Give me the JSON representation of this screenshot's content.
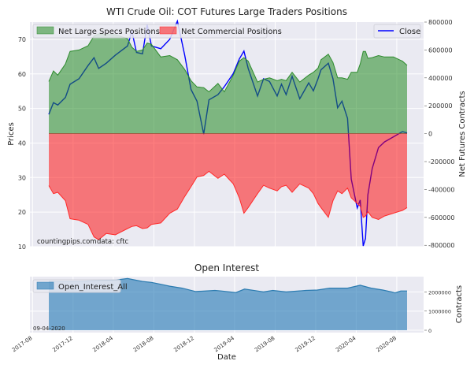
{
  "chart_data": [
    {
      "type": "area",
      "title": "WTI Crude Oil: COT Futures Large Traders Positions",
      "xlabel": "",
      "ylabel_left": "Prices",
      "ylabel_right": "Net Futures Contracts",
      "ylim_left": [
        10,
        75
      ],
      "ylim_right": [
        -810000,
        800000
      ],
      "yticks_left": [
        10,
        20,
        30,
        40,
        50,
        60,
        70
      ],
      "yticks_right": [
        -800000,
        -600000,
        -400000,
        -200000,
        0,
        200000,
        400000,
        600000,
        800000
      ],
      "grid": true,
      "legend_left": {
        "placement": "upper-left",
        "entries": [
          "Net Large Specs Positions",
          "Net Commercial Positions"
        ]
      },
      "legend_right": {
        "placement": "upper-right",
        "entries": [
          "Close"
        ]
      },
      "annotation": {
        "source": "countingpips.com",
        "data": "data: cftc"
      },
      "colors": {
        "specs": "#228B22",
        "commercial": "#ff0000",
        "close": "#0000ff",
        "specs_edge": "#2e8b2e",
        "commercial_edge": "#ff2a2a"
      },
      "x": [
        "2017-09-19",
        "2017-10-03",
        "2017-10-16",
        "2017-11-08",
        "2017-11-22",
        "2017-12-19",
        "2018-01-15",
        "2018-02-02",
        "2018-02-16",
        "2018-03-11",
        "2018-04-07",
        "2018-05-14",
        "2018-05-27",
        "2018-06-10",
        "2018-06-28",
        "2018-07-12",
        "2018-07-25",
        "2018-08-22",
        "2018-09-18",
        "2018-10-11",
        "2018-11-02",
        "2018-11-21",
        "2018-12-09",
        "2018-12-29",
        "2019-01-14",
        "2019-02-10",
        "2019-03-01",
        "2019-03-28",
        "2019-04-15",
        "2019-04-29",
        "2019-05-12",
        "2019-06-09",
        "2019-06-27",
        "2019-07-15",
        "2019-08-07",
        "2019-08-20",
        "2019-09-03",
        "2019-09-21",
        "2019-10-14",
        "2019-11-10",
        "2019-11-24",
        "2019-12-08",
        "2019-12-17",
        "2020-01-08",
        "2020-01-22",
        "2020-02-05",
        "2020-02-18",
        "2020-03-06",
        "2020-03-17",
        "2020-04-04",
        "2020-04-13",
        "2020-04-22",
        "2020-04-29",
        "2020-05-06",
        "2020-05-19",
        "2020-06-07",
        "2020-06-25",
        "2020-07-22",
        "2020-08-18",
        "2020-09-01"
      ],
      "series": [
        {
          "name": "Net Large Specs Positions",
          "axis": "right",
          "values": [
            374000,
            450000,
            420000,
            500000,
            590000,
            600000,
            630000,
            700000,
            715000,
            712000,
            710000,
            680000,
            620000,
            590000,
            600000,
            650000,
            640000,
            550000,
            560000,
            530000,
            460000,
            380000,
            335000,
            330000,
            300000,
            360000,
            300000,
            420000,
            520000,
            545000,
            520000,
            370000,
            390000,
            400000,
            380000,
            390000,
            380000,
            440000,
            370000,
            420000,
            440000,
            470000,
            530000,
            570000,
            510000,
            400000,
            400000,
            390000,
            440000,
            440000,
            500000,
            590000,
            590000,
            540000,
            545000,
            560000,
            550000,
            550000,
            520000,
            490000
          ]
        },
        {
          "name": "Net Commercial Positions",
          "axis": "right",
          "values": [
            -372000,
            -430000,
            -420000,
            -480000,
            -610000,
            -620000,
            -650000,
            -740000,
            -760000,
            -715000,
            -725000,
            -680000,
            -665000,
            -660000,
            -680000,
            -675000,
            -650000,
            -640000,
            -570000,
            -540000,
            -450000,
            -380000,
            -310000,
            -300000,
            -270000,
            -320000,
            -290000,
            -360000,
            -460000,
            -570000,
            -530000,
            -430000,
            -370000,
            -390000,
            -410000,
            -380000,
            -370000,
            -420000,
            -360000,
            -390000,
            -430000,
            -500000,
            -530000,
            -600000,
            -480000,
            -410000,
            -430000,
            -390000,
            -460000,
            -500000,
            -520000,
            -600000,
            -590000,
            -560000,
            -600000,
            -615000,
            -590000,
            -570000,
            -550000,
            -530000
          ]
        },
        {
          "name": "Close",
          "axis": "left",
          "values": [
            48.3,
            51.7,
            51.0,
            53.2,
            57.0,
            58.6,
            62.4,
            64.7,
            61.6,
            63.1,
            65.4,
            68.1,
            72.3,
            66.2,
            65.8,
            74.2,
            68.1,
            67.3,
            70.0,
            75.3,
            65.4,
            55.5,
            52.1,
            42.6,
            52.5,
            54.0,
            56.3,
            60.1,
            64.3,
            66.6,
            61.6,
            53.6,
            58.6,
            57.8,
            53.6,
            57.0,
            54.0,
            59.3,
            52.8,
            57.4,
            55.1,
            58.6,
            61.2,
            63.1,
            58.6,
            50.2,
            52.1,
            47.1,
            29.6,
            21.2,
            23.5,
            10.2,
            12.4,
            25.0,
            32.6,
            38.7,
            40.3,
            41.8,
            43.3,
            42.9
          ]
        }
      ]
    },
    {
      "type": "area",
      "title": "Open Interest",
      "xlabel": "Date",
      "ylabel_right": "Contracts",
      "ylim": [
        0,
        2800000
      ],
      "yticks": [
        0,
        1000000,
        2000000
      ],
      "xticks": [
        "2017-08",
        "2017-12",
        "2018-04",
        "2018-08",
        "2018-12",
        "2019-04",
        "2019-08",
        "2019-12",
        "2020-04",
        "2020-08"
      ],
      "grid": true,
      "legend": {
        "placement": "upper-left",
        "entries": [
          "Open_Interest_All"
        ]
      },
      "annotation": "09-04-2020",
      "colors": {
        "fill": "#1f77b4",
        "line": "#2b7bb0"
      },
      "x": [
        "2017-09-19",
        "2017-12-19",
        "2018-02-16",
        "2018-04-07",
        "2018-05-14",
        "2018-06-28",
        "2018-07-25",
        "2018-08-22",
        "2018-09-18",
        "2018-10-25",
        "2018-12-05",
        "2019-02-01",
        "2019-02-20",
        "2019-04-05",
        "2019-05-01",
        "2019-06-09",
        "2019-06-27",
        "2019-07-25",
        "2019-09-03",
        "2019-11-01",
        "2019-12-06",
        "2020-01-12",
        "2020-03-06",
        "2020-04-13",
        "2020-05-16",
        "2020-06-20",
        "2020-07-17",
        "2020-07-27",
        "2020-08-13",
        "2020-09-01"
      ],
      "values": [
        2550000,
        2550000,
        2600000,
        2620000,
        2700000,
        2550000,
        2500000,
        2400000,
        2300000,
        2200000,
        2020000,
        2080000,
        2050000,
        1970000,
        2150000,
        2050000,
        2000000,
        2080000,
        2000000,
        2080000,
        2100000,
        2200000,
        2200000,
        2350000,
        2200000,
        2100000,
        2000000,
        1950000,
        2050000,
        2050000
      ]
    }
  ]
}
